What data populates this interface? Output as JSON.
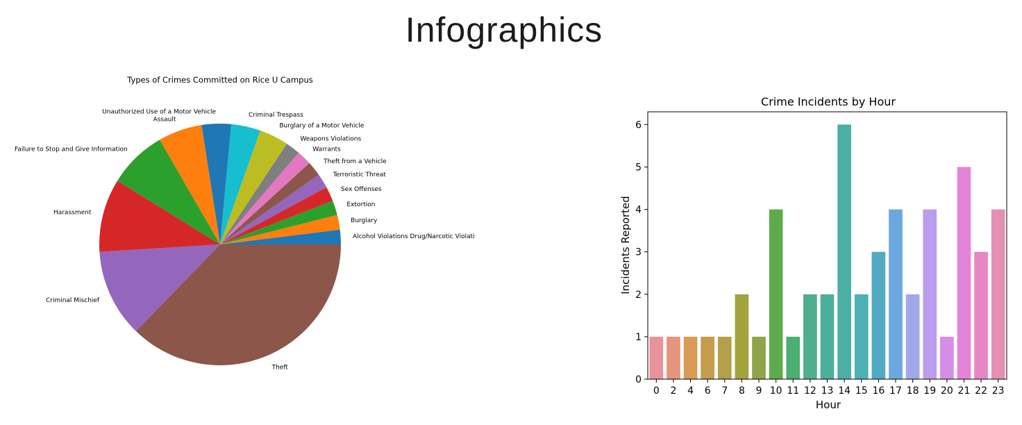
{
  "page": {
    "title": "Infographics"
  },
  "chart_data": [
    {
      "type": "pie",
      "title": "Types of Crimes Committed on Rice U Campus",
      "start_angle": 0,
      "direction": "counterclockwise",
      "slices": [
        {
          "label": "Alcohol Violations Drug/Narcotic Violati",
          "value": 1,
          "color": "#1f77b4"
        },
        {
          "label": "Burglary",
          "value": 1,
          "color": "#ff7f0e"
        },
        {
          "label": "Extortion",
          "value": 1,
          "color": "#2ca02c"
        },
        {
          "label": "Sex Offenses",
          "value": 1,
          "color": "#d62728"
        },
        {
          "label": "Terroristic Threat",
          "value": 1,
          "color": "#9467bd"
        },
        {
          "label": "Theft from a Vehicle",
          "value": 1,
          "color": "#8c564b"
        },
        {
          "label": "Warrants",
          "value": 1,
          "color": "#e377c2"
        },
        {
          "label": "Weapons Violations",
          "value": 1,
          "color": "#7f7f7f"
        },
        {
          "label": "Burglary of a Motor Vehicle",
          "value": 2,
          "color": "#bcbd22"
        },
        {
          "label": "Criminal Trespass",
          "value": 2,
          "color": "#17becf"
        },
        {
          "label": "Unauthorized Use of a Motor Vehicle",
          "value": 2,
          "color": "#1f77b4"
        },
        {
          "label": "Assault",
          "value": 3,
          "color": "#ff7f0e"
        },
        {
          "label": "Failure to Stop and Give Information",
          "value": 4,
          "color": "#2ca02c"
        },
        {
          "label": "Harassment",
          "value": 5,
          "color": "#d62728"
        },
        {
          "label": "Criminal Mischief",
          "value": 6,
          "color": "#9467bd"
        },
        {
          "label": "Theft",
          "value": 19,
          "color": "#8c564b"
        }
      ]
    },
    {
      "type": "bar",
      "title": "Crime Incidents by Hour",
      "xlabel": "Hour",
      "ylabel": "Incidents Reported",
      "ylim": [
        0,
        6.3
      ],
      "yticks": [
        0,
        1,
        2,
        3,
        4,
        5,
        6
      ],
      "grid": false,
      "categories": [
        "0",
        "2",
        "4",
        "6",
        "7",
        "8",
        "9",
        "10",
        "11",
        "12",
        "13",
        "14",
        "15",
        "16",
        "17",
        "18",
        "19",
        "20",
        "21",
        "22",
        "23"
      ],
      "values": [
        1,
        1,
        1,
        1,
        1,
        2,
        1,
        4,
        1,
        2,
        2,
        6,
        2,
        3,
        4,
        2,
        4,
        1,
        5,
        3,
        4
      ],
      "colors": [
        "#e8929b",
        "#e5957b",
        "#d99a55",
        "#c59b4c",
        "#b4a04a",
        "#a3a33e",
        "#8fa54a",
        "#5eab4c",
        "#4dae72",
        "#4eae8d",
        "#4baf9c",
        "#4bafa5",
        "#4db0b5",
        "#51a9c4",
        "#6ba8e0",
        "#a1a8ea",
        "#ba9ded",
        "#d48ee7",
        "#e484d8",
        "#e886c4",
        "#e68fb5"
      ]
    }
  ]
}
